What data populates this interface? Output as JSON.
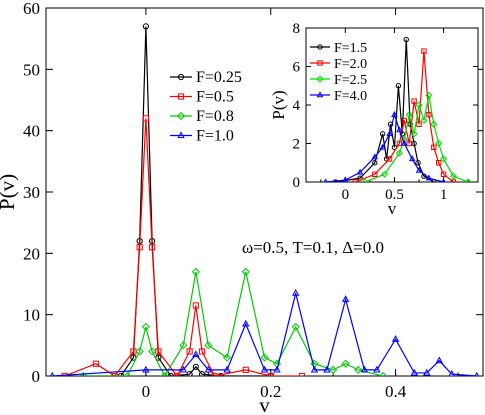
{
  "chart_data": [
    {
      "type": "line",
      "xlabel": "v",
      "ylabel": "P(v)",
      "xlim": [
        -0.16,
        0.54
      ],
      "ylim": [
        0,
        60
      ],
      "xticks": [
        0,
        0.2,
        0.4
      ],
      "xtick_labels": [
        "0",
        "0.2",
        "0.4"
      ],
      "yticks": [
        0,
        10,
        20,
        30,
        40,
        50,
        60
      ],
      "ytick_labels": [
        "0",
        "10",
        "20",
        "30",
        "40",
        "50",
        "60"
      ],
      "legend_position": "upper-middle",
      "annotation": "ω=0.5, T=0.1, Δ=0.0",
      "series": [
        {
          "name": "F=0.25",
          "color": "#000000",
          "marker": "circle",
          "x": [
            -0.1,
            -0.04,
            -0.02,
            -0.01,
            0.0,
            0.01,
            0.02,
            0.04,
            0.07,
            0.08,
            0.09,
            0.12,
            0.2
          ],
          "y": [
            0,
            0,
            3,
            22,
            57,
            22,
            3,
            0,
            0.3,
            1.5,
            0.3,
            0,
            0
          ]
        },
        {
          "name": "F=0.5",
          "color": "#ff0000",
          "marker": "square",
          "x": [
            -0.13,
            -0.08,
            -0.05,
            -0.02,
            -0.01,
            0.0,
            0.01,
            0.02,
            0.05,
            0.07,
            0.08,
            0.09,
            0.11,
            0.16,
            0.2,
            0.25
          ],
          "y": [
            0,
            2,
            0,
            4,
            21,
            42,
            21,
            4,
            0,
            4,
            11.5,
            4,
            0,
            1,
            0,
            0
          ]
        },
        {
          "name": "F=0.8",
          "color": "#00cc00",
          "marker": "diamond",
          "x": [
            -0.1,
            -0.03,
            -0.01,
            0.0,
            0.01,
            0.03,
            0.06,
            0.08,
            0.1,
            0.13,
            0.16,
            0.19,
            0.21,
            0.24,
            0.27,
            0.3,
            0.32,
            0.34,
            0.38
          ],
          "y": [
            0,
            0,
            4,
            8,
            4,
            0,
            5,
            17,
            5,
            3,
            17,
            3,
            2,
            8,
            2,
            1,
            2,
            1,
            0
          ]
        },
        {
          "name": "F=1.0",
          "color": "#0000ff",
          "marker": "triangle",
          "x": [
            -0.15,
            0.0,
            0.06,
            0.08,
            0.1,
            0.13,
            0.16,
            0.19,
            0.21,
            0.24,
            0.27,
            0.29,
            0.32,
            0.35,
            0.37,
            0.4,
            0.43,
            0.45,
            0.47,
            0.49,
            0.53
          ],
          "y": [
            0,
            1,
            1,
            3.5,
            1,
            1,
            8.5,
            1,
            1,
            13.5,
            1,
            1,
            12.5,
            1,
            1,
            6,
            0.5,
            0.5,
            2.5,
            0.3,
            0
          ]
        }
      ]
    },
    {
      "type": "line",
      "xlabel": "v",
      "ylabel": "P(v)",
      "xlim": [
        -0.4,
        1.35
      ],
      "ylim": [
        0,
        8
      ],
      "xticks": [
        0,
        0.5,
        1
      ],
      "xtick_labels": [
        "0",
        "0.5",
        "1"
      ],
      "yticks": [
        0,
        2,
        4,
        6,
        8
      ],
      "ytick_labels": [
        "0",
        "2",
        "4",
        "6",
        "8"
      ],
      "legend_position": "top-left",
      "series": [
        {
          "name": "F=1.5",
          "color": "#000000",
          "marker": "circle",
          "x": [
            -0.1,
            0.15,
            0.3,
            0.38,
            0.42,
            0.46,
            0.5,
            0.54,
            0.58,
            0.62,
            0.66,
            0.7,
            0.74,
            0.8,
            0.9
          ],
          "y": [
            0,
            0.2,
            1,
            2.5,
            1.2,
            3,
            1.8,
            5,
            2.5,
            7.4,
            3,
            2,
            1,
            0.3,
            0
          ]
        },
        {
          "name": "F=2.0",
          "color": "#ff0000",
          "marker": "square",
          "x": [
            0.1,
            0.3,
            0.45,
            0.55,
            0.6,
            0.65,
            0.7,
            0.75,
            0.8,
            0.85,
            0.9,
            0.95,
            1.0,
            1.1
          ],
          "y": [
            0,
            0.4,
            1.2,
            2,
            3.2,
            2,
            4.2,
            3,
            6.8,
            3.5,
            1.8,
            1,
            0.4,
            0
          ]
        },
        {
          "name": "F=2.5",
          "color": "#00dd00",
          "marker": "diamond",
          "x": [
            0.2,
            0.4,
            0.55,
            0.6,
            0.65,
            0.7,
            0.75,
            0.8,
            0.85,
            0.9,
            0.95,
            1.0,
            1.1,
            1.25
          ],
          "y": [
            0,
            0.4,
            1.5,
            2.2,
            3.5,
            2.5,
            4,
            3.2,
            4.5,
            3,
            2,
            1.2,
            0.3,
            0
          ]
        },
        {
          "name": "F=4.0",
          "color": "#0000ff",
          "marker": "triangle",
          "x": [
            -0.2,
            0.0,
            0.15,
            0.3,
            0.38,
            0.45,
            0.5,
            0.55,
            0.6,
            0.68,
            0.75,
            0.85,
            1.0
          ],
          "y": [
            0,
            0.1,
            0.5,
            1.3,
            1.8,
            2.5,
            3.5,
            2.7,
            2,
            1.2,
            0.6,
            0.2,
            0
          ]
        }
      ]
    }
  ]
}
